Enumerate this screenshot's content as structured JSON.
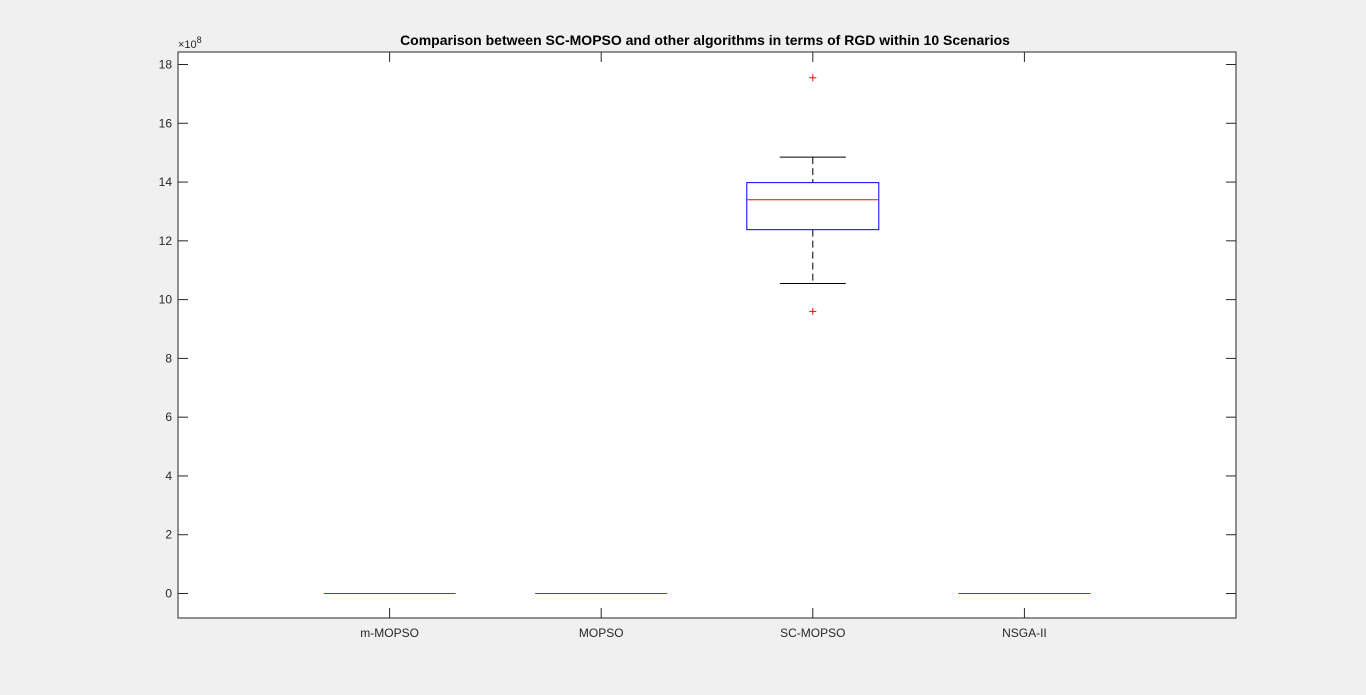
{
  "chart_data": {
    "type": "box",
    "title": "Comparison between SC-MOPSO and other algorithms in terms of RGD within 10 Scenarios",
    "xlabel": "",
    "ylabel": "",
    "y_scale_exponent_label": "×10",
    "y_scale_exponent_power": "8",
    "y_multiplier": 100000000,
    "ylim": [
      -0.85,
      18.45
    ],
    "y_ticks": [
      0,
      2,
      4,
      6,
      8,
      10,
      12,
      14,
      16,
      18
    ],
    "y_tick_labels": [
      "0",
      "2",
      "4",
      "6",
      "8",
      "10",
      "12",
      "14",
      "16",
      "18"
    ],
    "categories": [
      "m-MOPSO",
      "MOPSO",
      "SC-MOPSO",
      "NSGA-II"
    ],
    "series": [
      {
        "category": "m-MOPSO",
        "min": 0,
        "q1": 0,
        "median": 0,
        "q3": 0,
        "max": 0,
        "outliers": []
      },
      {
        "category": "MOPSO",
        "min": 0,
        "q1": 0,
        "median": 0,
        "q3": 0,
        "max": 0,
        "outliers": []
      },
      {
        "category": "SC-MOPSO",
        "min": 10.55,
        "q1": 12.38,
        "median": 13.4,
        "q3": 13.98,
        "max": 14.85,
        "outliers": [
          17.55,
          9.6
        ]
      },
      {
        "category": "NSGA-II",
        "min": 0,
        "q1": 0,
        "median": 0,
        "q3": 0,
        "max": 0,
        "outliers": []
      }
    ],
    "grid": false,
    "legend": "none",
    "colors": {
      "box": "#0000ff",
      "median": "#ff0000",
      "whisker": "#000000",
      "outlier": "#ff0000",
      "axes": "#262626"
    }
  }
}
